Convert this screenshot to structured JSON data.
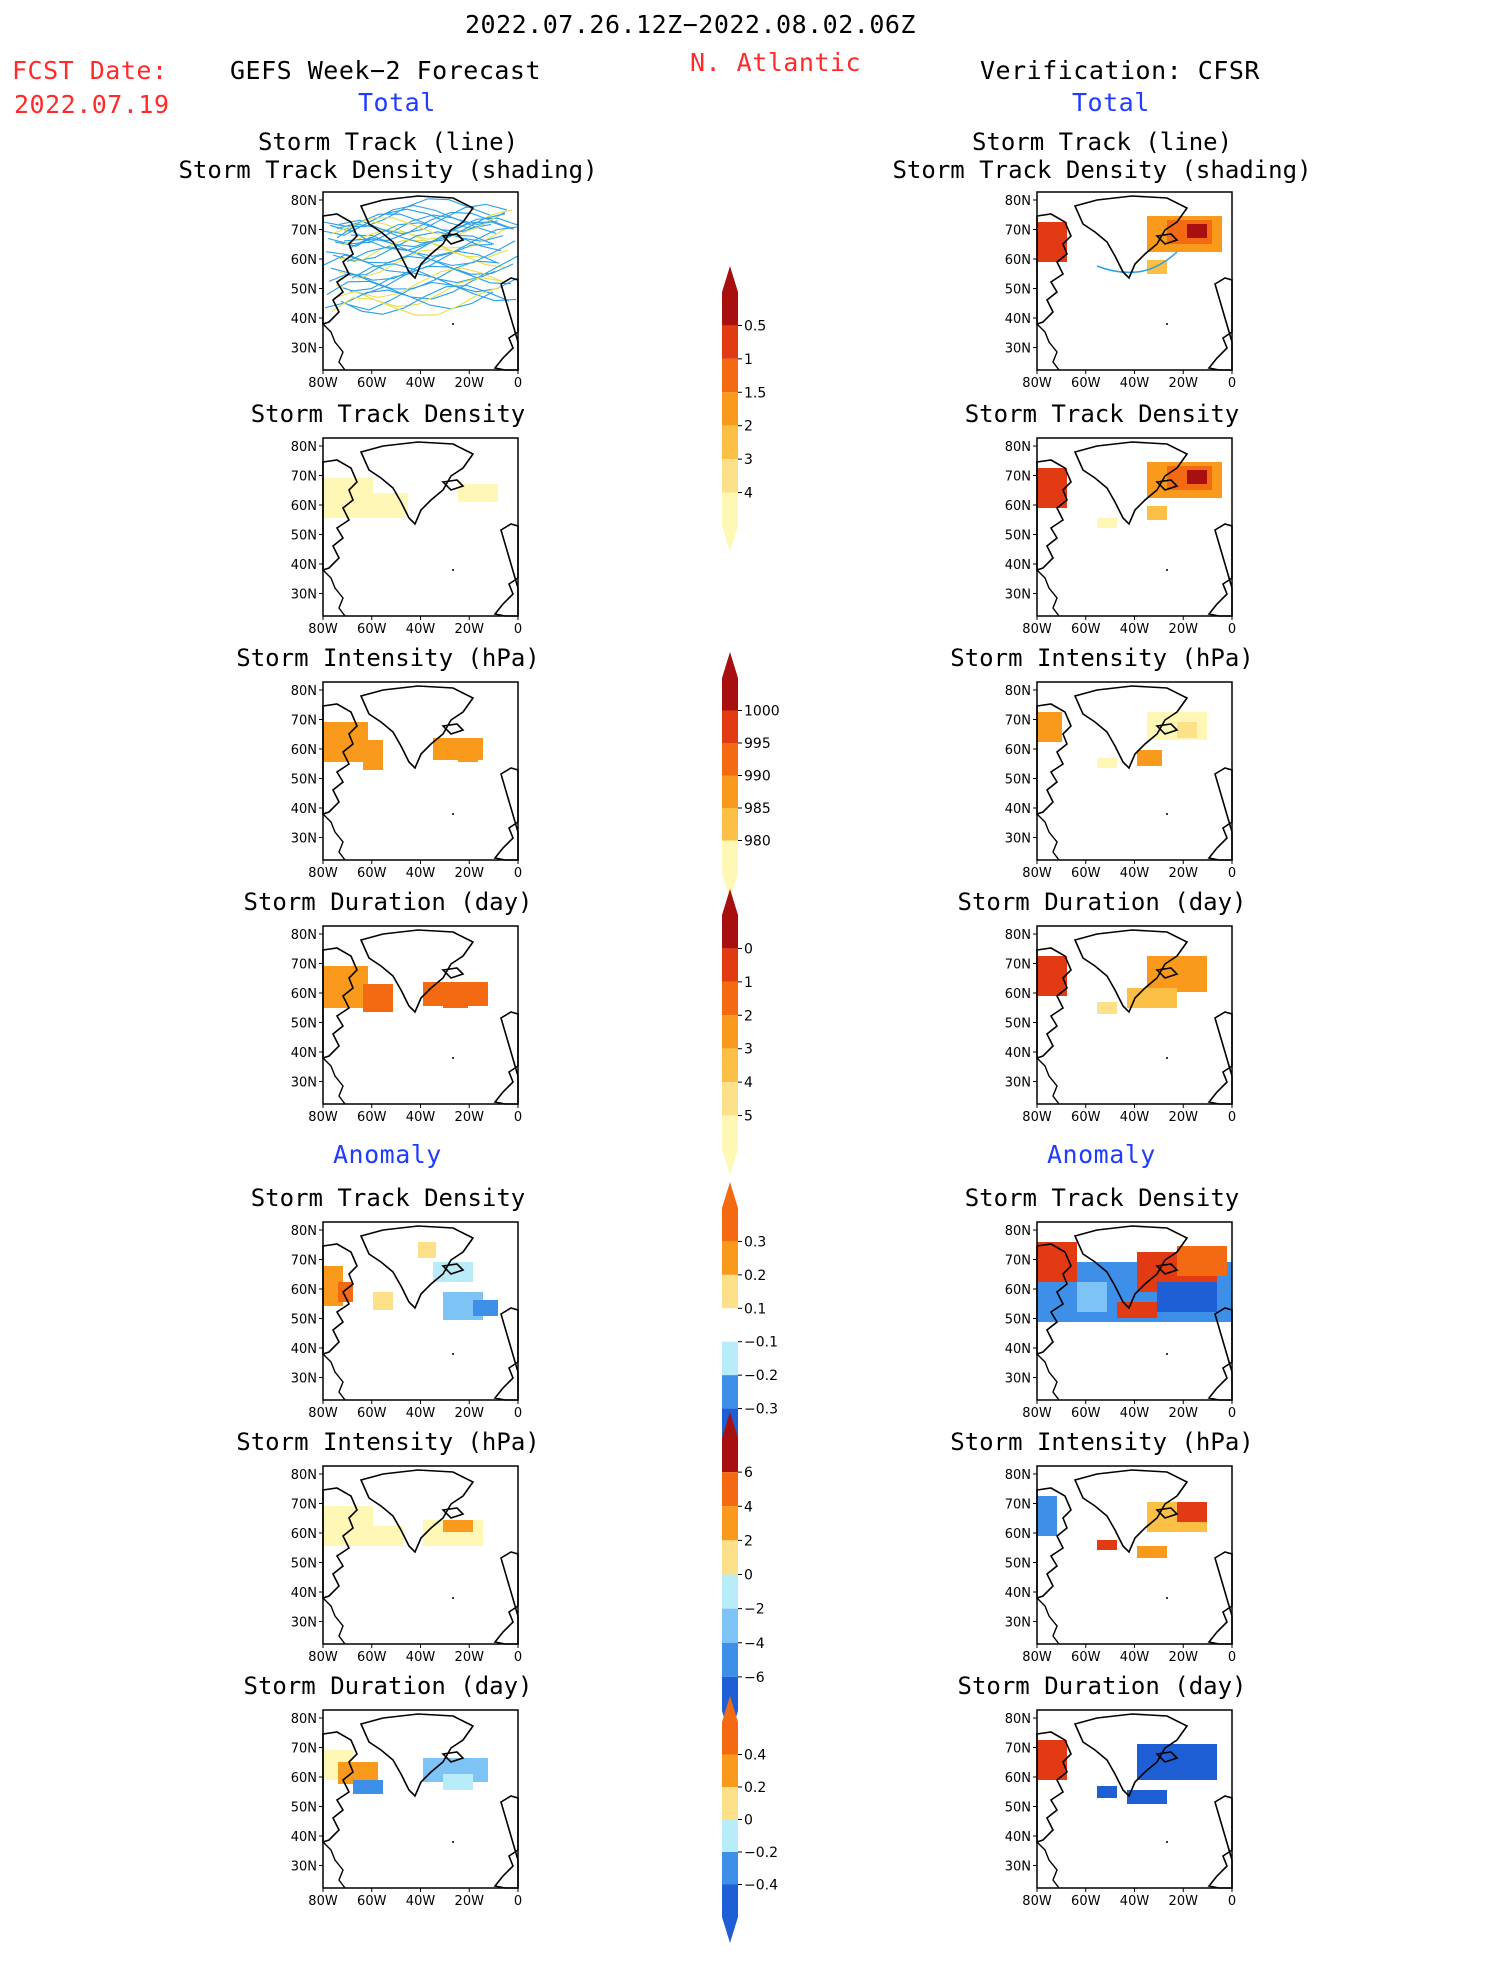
{
  "header": {
    "date_range": "2022.07.26.12Z−2022.08.02.06Z",
    "region": "N. Atlantic",
    "fcst_label": "FCST Date:",
    "fcst_date": "2022.07.19",
    "left_title": "GEFS Week−2 Forecast",
    "right_title": "Verification: CFSR",
    "total_label": "Total",
    "anomaly_label": "Anomaly"
  },
  "panel_titles": {
    "track_line": "Storm Track (line)",
    "track_shading": "Storm Track Density (shading)",
    "density": "Storm Track Density",
    "intensity": "Storm Intensity (hPa)",
    "duration": "Storm Duration (day)"
  },
  "map_axes": {
    "lat_ticks": [
      "80N",
      "70N",
      "60N",
      "50N",
      "40N",
      "30N"
    ],
    "lon_ticks": [
      "80W",
      "60W",
      "40W",
      "20W",
      "0"
    ]
  },
  "colors": {
    "yellow_light": "#fff7b5",
    "yellow": "#fde08a",
    "orange_light": "#fbbf45",
    "orange": "#f99a1c",
    "orange_red": "#f46a12",
    "red": "#e23a12",
    "dark_red": "#a80f0f",
    "blue_light": "#b8ecf8",
    "blue_mid": "#7ec3f5",
    "blue": "#3e8fe8",
    "blue_dark": "#1f5fd6",
    "track_blue": "#2aa0e6",
    "track_yellow": "#e8e04a"
  },
  "chart_data": [
    {
      "type": "heatmap",
      "title": "Storm Track Density",
      "colorbar": [
        0.5,
        1,
        1.5,
        2,
        3,
        4
      ],
      "colorbar_labels": [
        "0.5",
        "1",
        "1.5",
        "2",
        "3",
        "4"
      ]
    },
    {
      "type": "heatmap",
      "title": "Storm Intensity (hPa)",
      "colorbar": [
        1000,
        995,
        990,
        985,
        980
      ],
      "colorbar_labels": [
        "1000",
        "995",
        "990",
        "985",
        "980"
      ]
    },
    {
      "type": "heatmap",
      "title": "Storm Duration (day)",
      "colorbar": [
        0,
        1,
        2,
        3,
        4,
        5
      ],
      "colorbar_labels": [
        "0",
        "1",
        "2",
        "3",
        "4",
        "5"
      ]
    },
    {
      "type": "heatmap",
      "title": "Storm Track Density Anomaly",
      "colorbar": [
        -0.3,
        -0.2,
        -0.1,
        0.1,
        0.2,
        0.3
      ],
      "colorbar_labels": [
        "0.3",
        "0.2",
        "0.1",
        "−0.1",
        "−0.2",
        "−0.3"
      ]
    },
    {
      "type": "heatmap",
      "title": "Storm Intensity Anomaly (hPa)",
      "colorbar": [
        -6,
        -4,
        -2,
        0,
        2,
        4,
        6
      ],
      "colorbar_labels": [
        "6",
        "4",
        "2",
        "0",
        "−2",
        "−4",
        "−6"
      ]
    },
    {
      "type": "heatmap",
      "title": "Storm Duration Anomaly (day)",
      "colorbar": [
        -0.4,
        -0.2,
        0,
        0.2,
        0.4
      ],
      "colorbar_labels": [
        "0.4",
        "0.2",
        "0",
        "−0.2",
        "−0.4"
      ]
    }
  ]
}
